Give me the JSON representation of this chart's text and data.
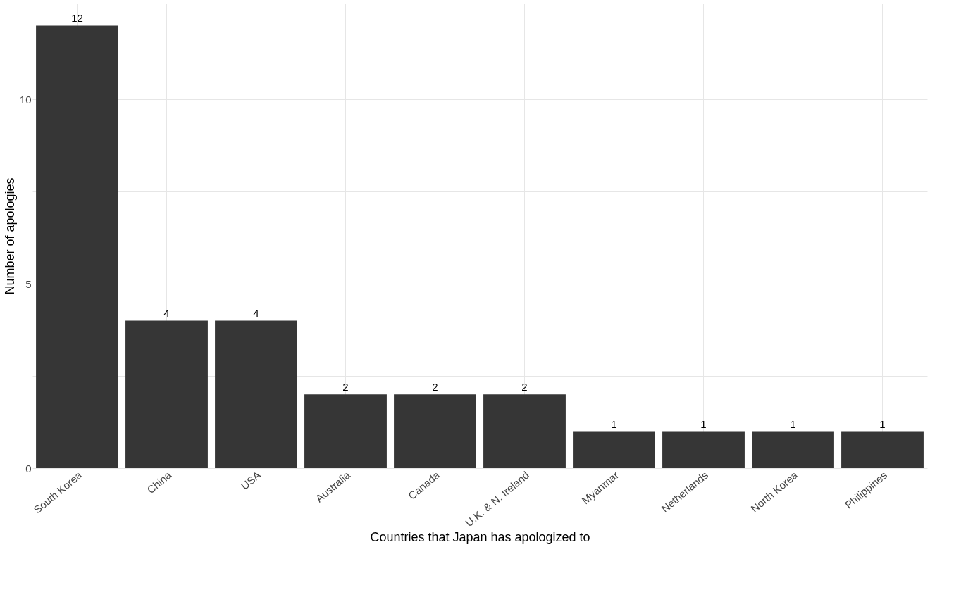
{
  "chart_data": {
    "type": "bar",
    "xlabel": "Countries that Japan has apologized to",
    "ylabel": "Number of apologies",
    "categories": [
      "South Korea",
      "China",
      "USA",
      "Australia",
      "Canada",
      "U.K. & N. Ireland",
      "Myanmar",
      "Netherlands",
      "North Korea",
      "Philippines"
    ],
    "values": [
      12,
      4,
      4,
      2,
      2,
      2,
      1,
      1,
      1,
      1
    ],
    "color": "#363636",
    "ylim": [
      0,
      12.6
    ],
    "yticks": [
      0,
      {
        "value": 2.5,
        "label": null
      },
      5,
      {
        "value": 7.5,
        "label": null
      },
      10
    ],
    "grid": true,
    "data_labels": true
  }
}
